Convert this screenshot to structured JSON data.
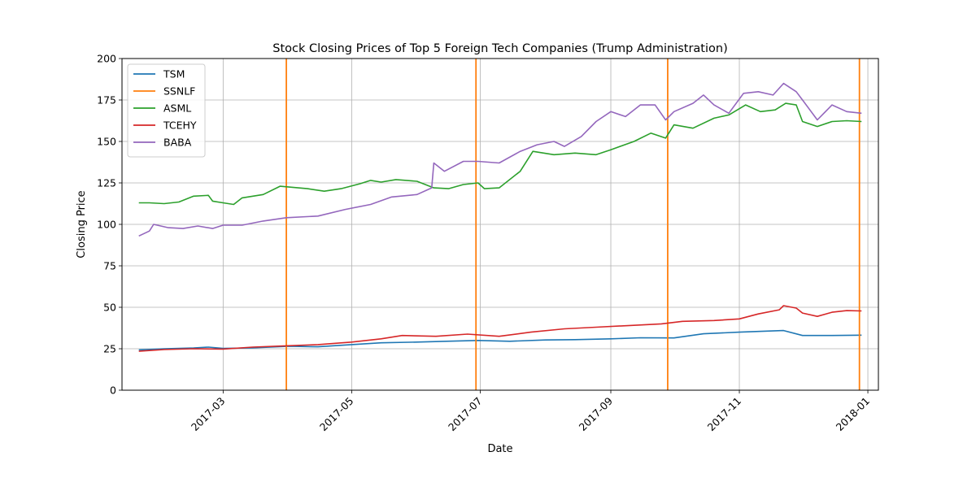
{
  "chart_data": {
    "type": "line",
    "title": "Stock Closing Prices of Top 5 Foreign Tech Companies (Trump Administration)",
    "xlabel": "Date",
    "ylabel": "Closing Price",
    "ylim": [
      0,
      200
    ],
    "xlim": [
      "2017-01-12",
      "2018-01-06"
    ],
    "yticks": [
      0,
      25,
      50,
      75,
      100,
      125,
      150,
      175,
      200
    ],
    "xticks": [
      {
        "date": "2017-03-01",
        "label": "2017-03"
      },
      {
        "date": "2017-05-01",
        "label": "2017-05"
      },
      {
        "date": "2017-07-01",
        "label": "2017-07"
      },
      {
        "date": "2017-09-01",
        "label": "2017-09"
      },
      {
        "date": "2017-11-01",
        "label": "2017-11"
      },
      {
        "date": "2018-01-01",
        "label": "2018-01"
      }
    ],
    "grid": true,
    "legend_position": "top-left",
    "series": [
      {
        "name": "TSM",
        "color": "#1f77b4",
        "points": [
          [
            "2017-01-20",
            24.3
          ],
          [
            "2017-02-01",
            25.0
          ],
          [
            "2017-02-15",
            25.5
          ],
          [
            "2017-02-22",
            26.0
          ],
          [
            "2017-03-01",
            25.2
          ],
          [
            "2017-03-15",
            25.5
          ],
          [
            "2017-04-01",
            26.5
          ],
          [
            "2017-04-15",
            26.2
          ],
          [
            "2017-05-01",
            27.5
          ],
          [
            "2017-05-15",
            28.6
          ],
          [
            "2017-06-01",
            29.0
          ],
          [
            "2017-06-15",
            29.5
          ],
          [
            "2017-06-30",
            30.0
          ],
          [
            "2017-07-15",
            29.5
          ],
          [
            "2017-08-01",
            30.3
          ],
          [
            "2017-08-15",
            30.5
          ],
          [
            "2017-09-01",
            31.0
          ],
          [
            "2017-09-15",
            31.6
          ],
          [
            "2017-10-01",
            31.5
          ],
          [
            "2017-10-15",
            34.0
          ],
          [
            "2017-11-01",
            35.0
          ],
          [
            "2017-11-22",
            36.0
          ],
          [
            "2017-12-01",
            33.0
          ],
          [
            "2017-12-15",
            33.0
          ],
          [
            "2017-12-29",
            33.2
          ]
        ]
      },
      {
        "name": "SSNLF",
        "color": "#ff7f0e",
        "verticals": [
          "2017-03-31",
          "2017-06-29",
          "2017-09-28",
          "2017-12-28"
        ]
      },
      {
        "name": "ASML",
        "color": "#2ca02c",
        "points": [
          [
            "2017-01-20",
            113.0
          ],
          [
            "2017-01-25",
            113.0
          ],
          [
            "2017-02-01",
            112.5
          ],
          [
            "2017-02-08",
            113.5
          ],
          [
            "2017-02-15",
            117.0
          ],
          [
            "2017-02-22",
            117.5
          ],
          [
            "2017-02-24",
            114.0
          ],
          [
            "2017-03-01",
            113.0
          ],
          [
            "2017-03-06",
            112.0
          ],
          [
            "2017-03-10",
            116.0
          ],
          [
            "2017-03-20",
            118.0
          ],
          [
            "2017-03-28",
            123.0
          ],
          [
            "2017-04-10",
            121.5
          ],
          [
            "2017-04-18",
            120.0
          ],
          [
            "2017-04-26",
            121.5
          ],
          [
            "2017-05-05",
            124.5
          ],
          [
            "2017-05-10",
            126.5
          ],
          [
            "2017-05-15",
            125.5
          ],
          [
            "2017-05-22",
            127.0
          ],
          [
            "2017-06-01",
            126.0
          ],
          [
            "2017-06-09",
            122.0
          ],
          [
            "2017-06-16",
            121.5
          ],
          [
            "2017-06-23",
            124.0
          ],
          [
            "2017-06-30",
            125.0
          ],
          [
            "2017-07-03",
            121.5
          ],
          [
            "2017-07-10",
            122.0
          ],
          [
            "2017-07-20",
            132.0
          ],
          [
            "2017-07-26",
            144.0
          ],
          [
            "2017-08-05",
            142.0
          ],
          [
            "2017-08-15",
            143.0
          ],
          [
            "2017-08-25",
            142.0
          ],
          [
            "2017-09-01",
            145.0
          ],
          [
            "2017-09-12",
            150.0
          ],
          [
            "2017-09-20",
            155.0
          ],
          [
            "2017-09-27",
            152.0
          ],
          [
            "2017-10-01",
            160.0
          ],
          [
            "2017-10-10",
            158.0
          ],
          [
            "2017-10-20",
            164.0
          ],
          [
            "2017-10-27",
            166.0
          ],
          [
            "2017-11-04",
            172.0
          ],
          [
            "2017-11-11",
            168.0
          ],
          [
            "2017-11-18",
            169.0
          ],
          [
            "2017-11-23",
            173.0
          ],
          [
            "2017-11-28",
            172.0
          ],
          [
            "2017-12-01",
            162.0
          ],
          [
            "2017-12-08",
            159.0
          ],
          [
            "2017-12-15",
            162.0
          ],
          [
            "2017-12-22",
            162.5
          ],
          [
            "2017-12-29",
            162.0
          ]
        ]
      },
      {
        "name": "TCEHY",
        "color": "#d62728",
        "points": [
          [
            "2017-01-20",
            23.5
          ],
          [
            "2017-02-01",
            24.5
          ],
          [
            "2017-02-15",
            25.0
          ],
          [
            "2017-03-01",
            24.8
          ],
          [
            "2017-03-15",
            26.0
          ],
          [
            "2017-04-01",
            26.8
          ],
          [
            "2017-04-15",
            27.5
          ],
          [
            "2017-05-01",
            29.0
          ],
          [
            "2017-05-15",
            31.0
          ],
          [
            "2017-05-25",
            33.0
          ],
          [
            "2017-06-10",
            32.5
          ],
          [
            "2017-06-25",
            33.8
          ],
          [
            "2017-07-10",
            32.5
          ],
          [
            "2017-07-25",
            35.0
          ],
          [
            "2017-08-10",
            37.0
          ],
          [
            "2017-08-25",
            38.0
          ],
          [
            "2017-09-10",
            39.0
          ],
          [
            "2017-09-25",
            40.0
          ],
          [
            "2017-10-05",
            41.5
          ],
          [
            "2017-10-20",
            42.0
          ],
          [
            "2017-11-01",
            43.0
          ],
          [
            "2017-11-10",
            46.0
          ],
          [
            "2017-11-20",
            48.5
          ],
          [
            "2017-11-22",
            51.0
          ],
          [
            "2017-11-28",
            49.5
          ],
          [
            "2017-12-01",
            46.5
          ],
          [
            "2017-12-08",
            44.5
          ],
          [
            "2017-12-15",
            47.0
          ],
          [
            "2017-12-22",
            48.0
          ],
          [
            "2017-12-29",
            47.8
          ]
        ]
      },
      {
        "name": "BABA",
        "color": "#9467bd",
        "points": [
          [
            "2017-01-20",
            93.0
          ],
          [
            "2017-01-25",
            96.0
          ],
          [
            "2017-01-27",
            100.0
          ],
          [
            "2017-02-03",
            98.0
          ],
          [
            "2017-02-10",
            97.5
          ],
          [
            "2017-02-17",
            99.0
          ],
          [
            "2017-02-24",
            97.5
          ],
          [
            "2017-03-01",
            99.5
          ],
          [
            "2017-03-10",
            99.5
          ],
          [
            "2017-03-20",
            102.0
          ],
          [
            "2017-03-31",
            104.0
          ],
          [
            "2017-04-15",
            105.0
          ],
          [
            "2017-04-28",
            109.0
          ],
          [
            "2017-05-10",
            112.0
          ],
          [
            "2017-05-20",
            116.5
          ],
          [
            "2017-06-01",
            118.0
          ],
          [
            "2017-06-08",
            122.0
          ],
          [
            "2017-06-09",
            137.0
          ],
          [
            "2017-06-14",
            132.0
          ],
          [
            "2017-06-23",
            138.0
          ],
          [
            "2017-06-30",
            138.0
          ],
          [
            "2017-07-10",
            137.0
          ],
          [
            "2017-07-20",
            144.0
          ],
          [
            "2017-07-28",
            148.0
          ],
          [
            "2017-08-05",
            150.0
          ],
          [
            "2017-08-10",
            147.0
          ],
          [
            "2017-08-18",
            153.0
          ],
          [
            "2017-08-25",
            162.0
          ],
          [
            "2017-09-01",
            168.0
          ],
          [
            "2017-09-08",
            165.0
          ],
          [
            "2017-09-15",
            172.0
          ],
          [
            "2017-09-22",
            172.0
          ],
          [
            "2017-09-27",
            163.0
          ],
          [
            "2017-10-01",
            168.0
          ],
          [
            "2017-10-10",
            173.0
          ],
          [
            "2017-10-15",
            178.0
          ],
          [
            "2017-10-20",
            172.0
          ],
          [
            "2017-10-27",
            167.0
          ],
          [
            "2017-11-03",
            179.0
          ],
          [
            "2017-11-10",
            180.0
          ],
          [
            "2017-11-17",
            178.0
          ],
          [
            "2017-11-22",
            185.0
          ],
          [
            "2017-11-28",
            180.0
          ],
          [
            "2017-12-01",
            175.0
          ],
          [
            "2017-12-08",
            163.0
          ],
          [
            "2017-12-15",
            172.0
          ],
          [
            "2017-12-22",
            168.0
          ],
          [
            "2017-12-29",
            167.0
          ]
        ]
      }
    ]
  }
}
